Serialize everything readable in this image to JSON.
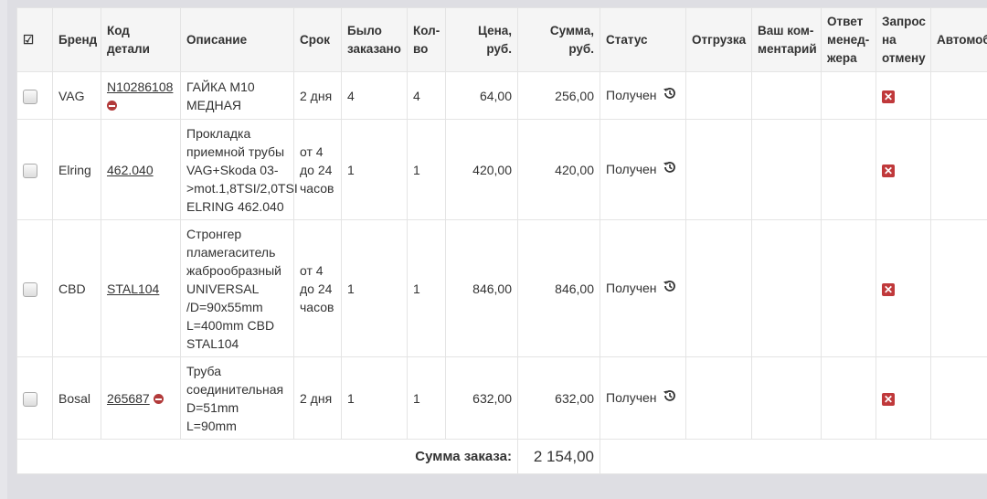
{
  "headers": {
    "check": "☑",
    "brand": "Бренд",
    "code": "Код детали",
    "desc": "Описание",
    "term": "Срок",
    "ordered": "Было заказано",
    "qty": "Кол-во",
    "price": "Цена, руб.",
    "sum": "Сумма, руб.",
    "status": "Статус",
    "shipment": "Отгрузка",
    "comment": "Ваш ком-ментарий",
    "answer": "Ответ менед-жера",
    "cancel": "Запрос на отмену",
    "car": "Автомобиль"
  },
  "rows": [
    {
      "brand": "VAG",
      "code": "N10286108",
      "blocked": true,
      "desc": "ГАЙКА М10 МЕДНАЯ",
      "term": "2 дня",
      "ordered": "4",
      "qty": "4",
      "price": "64,00",
      "sum": "256,00",
      "status": "Получен"
    },
    {
      "brand": "Elring",
      "code": "462.040",
      "blocked": false,
      "desc": "Прокладка приемной трубы VAG+Skoda 03->mot.1,8TSI/2,0TSI ELRING 462.040",
      "term": "от 4 до 24 часов",
      "ordered": "1",
      "qty": "1",
      "price": "420,00",
      "sum": "420,00",
      "status": "Получен"
    },
    {
      "brand": "CBD",
      "code": "STAL104",
      "blocked": false,
      "desc": "Стронгер пламегаситель жаброобразный UNIVERSAL /D=90x55mm L=400mm CBD STAL104",
      "term": "от 4 до 24 часов",
      "ordered": "1",
      "qty": "1",
      "price": "846,00",
      "sum": "846,00",
      "status": "Получен"
    },
    {
      "brand": "Bosal",
      "code": "265687",
      "blocked": true,
      "desc": "Труба соединительная D=51mm L=90mm",
      "term": "2 дня",
      "ordered": "1",
      "qty": "1",
      "price": "632,00",
      "sum": "632,00",
      "status": "Получен"
    }
  ],
  "footer": {
    "label": "Сумма заказа:",
    "total": "2 154,00"
  },
  "colors": {
    "cancel": "#c0393b",
    "blocked": "#b23a3a"
  }
}
